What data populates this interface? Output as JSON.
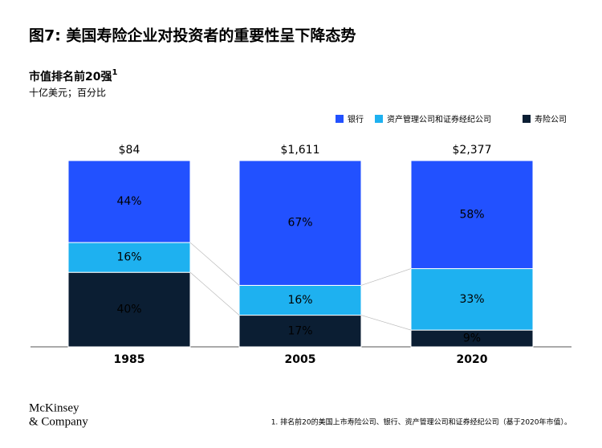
{
  "chart_data": {
    "type": "stacked_bar_percent",
    "title": "图7: 美国寿险企业对投资者的重要性呈下降态势",
    "subtitle": "市值排名前20强",
    "subtitle_note": "1",
    "units": "十亿美元；百分比",
    "categories": [
      "1985",
      "2005",
      "2020"
    ],
    "totals": [
      84,
      1611,
      2377
    ],
    "total_labels": [
      "$84",
      "$1,611",
      "$2,377"
    ],
    "series": [
      {
        "name": "银行",
        "color": "#2251ff",
        "label_color": "#ffffff",
        "values": [
          44,
          67,
          58
        ],
        "value_labels": [
          "44%",
          "67%",
          "58%"
        ]
      },
      {
        "name": "资产管理公司和证券经纪公司",
        "color": "#1eb1f0",
        "label_color": "#0b1e33",
        "values": [
          16,
          16,
          33
        ],
        "value_labels": [
          "16%",
          "16%",
          "33%"
        ]
      },
      {
        "name": "寿险公司",
        "color": "#0b1e33",
        "label_color": "#ffffff",
        "values": [
          40,
          17,
          9
        ],
        "value_labels": [
          "40%",
          "17%",
          "9%"
        ]
      }
    ],
    "footnote": "1. 排名前20的美国上市寿险公司、银行、资产管理公司和证券经纪公司（基于2020年市值）。",
    "logo": [
      "McKinsey",
      "& Company"
    ]
  }
}
